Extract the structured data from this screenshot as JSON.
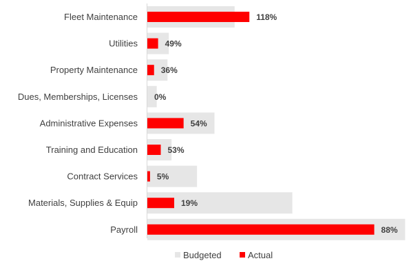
{
  "chart_data": {
    "type": "bar",
    "orientation": "horizontal",
    "categories": [
      "Fleet Maintenance",
      "Utilities",
      "Property Maintenance",
      "Dues, Memberships, Licenses",
      "Administrative Expenses",
      "Training and Education",
      "Contract Services",
      "Materials, Supplies & Equip",
      "Payroll"
    ],
    "series": [
      {
        "name": "Budgeted",
        "color": "#e6e6e6",
        "values": [
          65,
          16,
          15,
          7,
          50,
          18,
          37,
          108,
          192
        ]
      },
      {
        "name": "Actual",
        "color": "#ff0000",
        "values": [
          76,
          8,
          5,
          0,
          27,
          10,
          2,
          20,
          169
        ]
      }
    ],
    "data_labels": [
      "118%",
      "49%",
      "36%",
      "0%",
      "54%",
      "53%",
      "5%",
      "19%",
      "88%"
    ],
    "xlim": [
      0,
      200
    ],
    "legend": {
      "placement": "bottom",
      "items": [
        "Budgeted",
        "Actual"
      ]
    },
    "grid": false,
    "title": "",
    "xlabel": "",
    "ylabel": ""
  }
}
